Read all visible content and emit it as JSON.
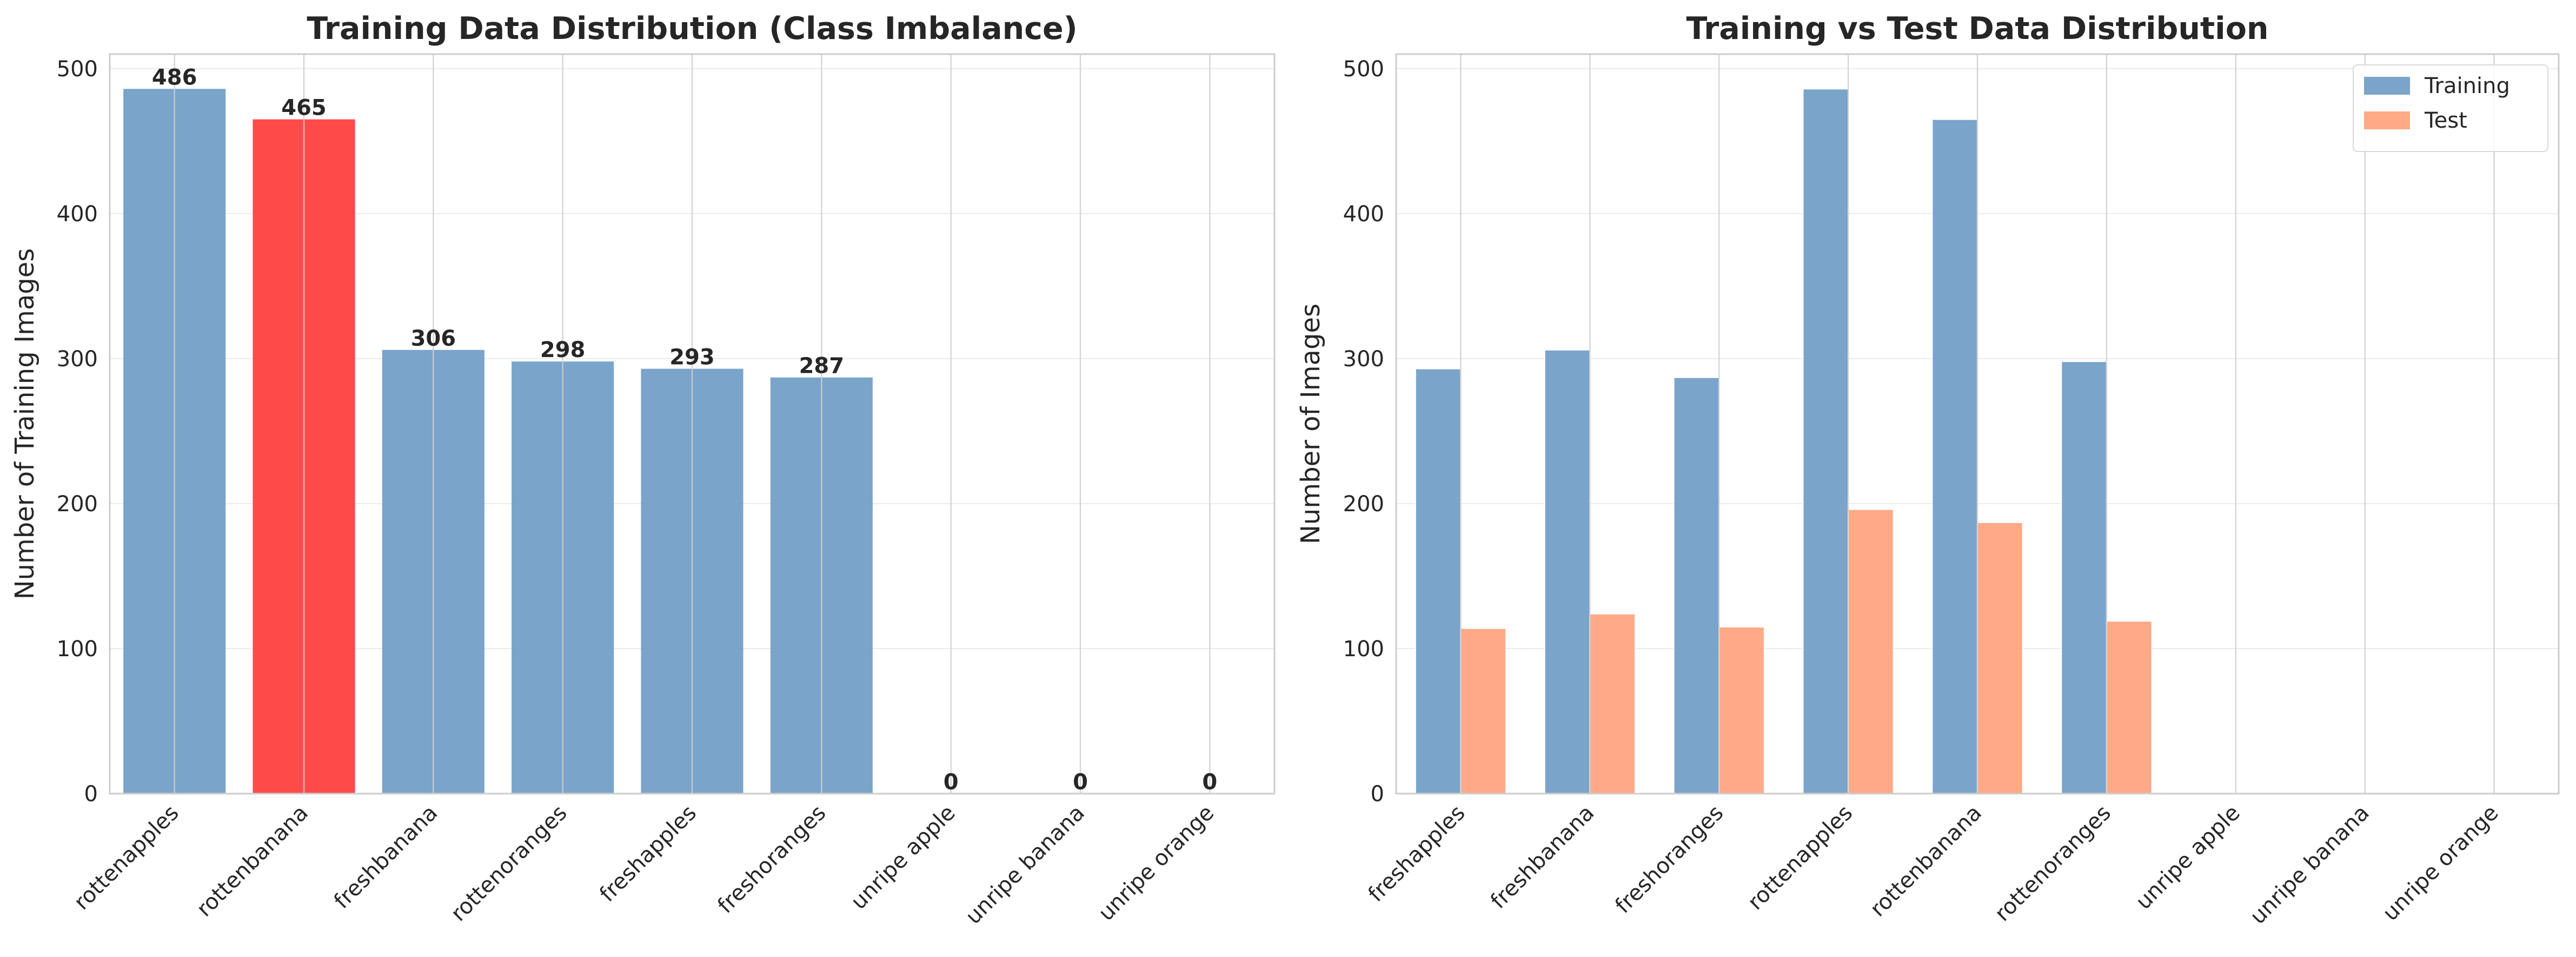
{
  "chart_data": [
    {
      "type": "bar",
      "title": "Training Data Distribution (Class Imbalance)",
      "xlabel": "",
      "ylabel": "Number of Training Images",
      "categories": [
        "rottenapples",
        "rottenbanana",
        "freshbanana",
        "rottenoranges",
        "freshapples",
        "freshoranges",
        "unripe apple",
        "unripe banana",
        "unripe orange"
      ],
      "values": [
        486,
        465,
        306,
        298,
        293,
        287,
        0,
        0,
        0
      ],
      "data_labels": [
        "486",
        "465",
        "306",
        "298",
        "293",
        "287",
        "0",
        "0",
        "0"
      ],
      "highlight_index": 1,
      "colors": {
        "default": "#6b9ac4",
        "highlight": "#ff3b3b"
      },
      "ylim": [
        0,
        510
      ],
      "yticks": [
        0,
        100,
        200,
        300,
        400,
        500
      ],
      "grid": true,
      "legend": null
    },
    {
      "type": "bar",
      "title": "Training vs Test Data Distribution",
      "xlabel": "",
      "ylabel": "Number of Images",
      "categories": [
        "freshapples",
        "freshbanana",
        "freshoranges",
        "rottenapples",
        "rottenbanana",
        "rottenoranges",
        "unripe apple",
        "unripe banana",
        "unripe orange"
      ],
      "series": [
        {
          "name": "Training",
          "color": "#6b9ac4",
          "values": [
            293,
            306,
            287,
            486,
            465,
            298,
            0,
            0,
            0
          ]
        },
        {
          "name": "Test",
          "color": "#ffa07a",
          "values": [
            114,
            124,
            115,
            196,
            187,
            119,
            0,
            0,
            0
          ]
        }
      ],
      "ylim": [
        0,
        510
      ],
      "yticks": [
        0,
        100,
        200,
        300,
        400,
        500
      ],
      "grid": true,
      "legend": "top-right"
    }
  ]
}
